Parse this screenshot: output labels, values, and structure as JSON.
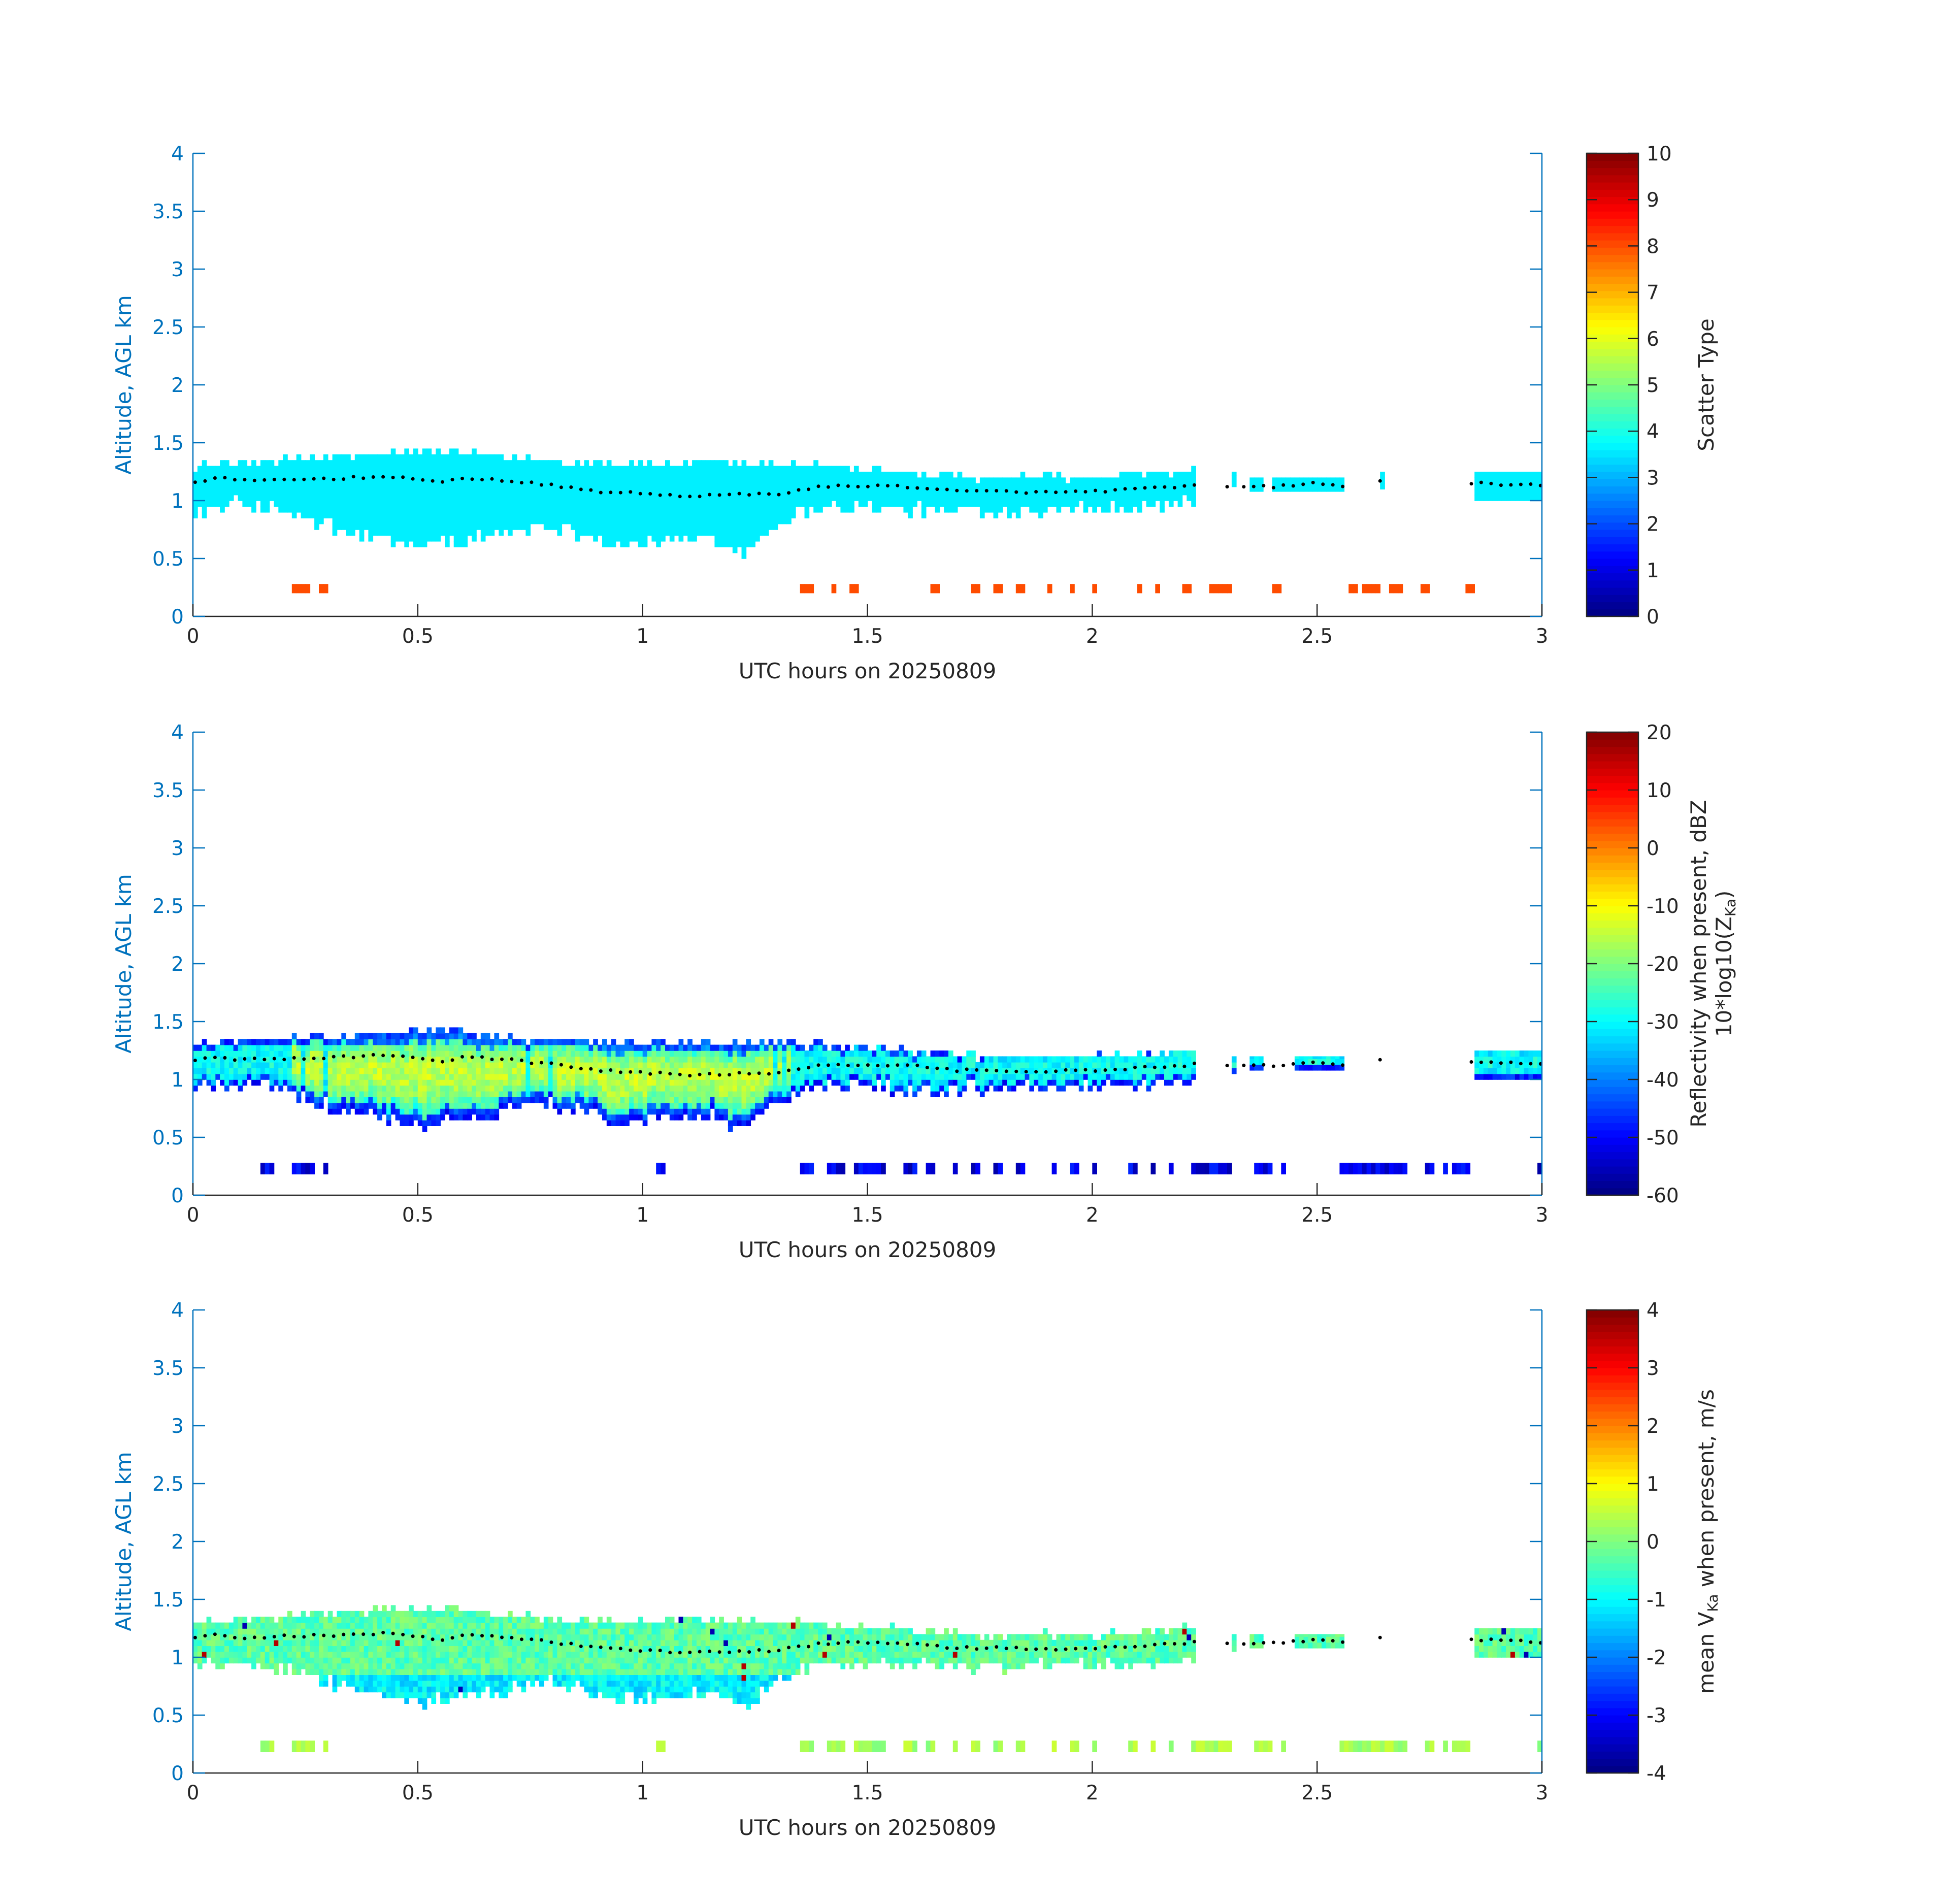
{
  "chart_data": [
    {
      "type": "heatmap",
      "xlabel": "UTC hours on 20250809",
      "ylabel": "Altitude, AGL km",
      "xlim": [
        0,
        3
      ],
      "ylim": [
        0,
        4
      ],
      "xticks": [
        "0",
        "0.5",
        "1",
        "1.5",
        "2",
        "2.5",
        "3"
      ],
      "yticks": [
        "0",
        "0.5",
        "1",
        "1.5",
        "2",
        "2.5",
        "3",
        "3.5",
        "4"
      ],
      "colorbar": {
        "label": "Scatter Type",
        "label2": "",
        "limits": [
          0,
          10
        ],
        "ticks": [
          "0",
          "1",
          "2",
          "3",
          "4",
          "5",
          "6",
          "7",
          "8",
          "9",
          "10"
        ]
      },
      "layer_x": [
        0.0,
        0.06,
        0.1,
        0.2,
        0.3,
        0.45,
        0.5,
        0.55,
        0.6,
        0.7,
        0.8,
        0.9,
        1.0,
        1.1,
        1.2,
        1.3,
        1.4,
        1.5,
        1.6,
        1.7,
        1.8,
        1.9,
        2.0,
        2.1,
        2.2,
        2.23,
        2.3,
        2.4,
        2.5,
        2.56,
        2.64,
        2.86,
        3.0
      ],
      "layer_y": [
        1.16,
        1.2,
        1.17,
        1.18,
        1.19,
        1.21,
        1.18,
        1.15,
        1.2,
        1.17,
        1.13,
        1.08,
        1.06,
        1.04,
        1.05,
        1.06,
        1.12,
        1.13,
        1.12,
        1.08,
        1.08,
        1.07,
        1.08,
        1.1,
        1.12,
        1.13,
        1.12,
        1.12,
        1.15,
        1.12,
        1.17,
        1.15,
        1.13
      ],
      "layer_gaps": [
        [
          2.24,
          2.33
        ],
        [
          2.57,
          2.84
        ]
      ],
      "echo_top": [
        [
          0.0,
          1.3
        ],
        [
          0.3,
          1.38
        ],
        [
          0.55,
          1.43
        ],
        [
          0.72,
          1.36
        ],
        [
          0.9,
          1.32
        ],
        [
          1.2,
          1.32
        ],
        [
          1.4,
          1.3
        ],
        [
          1.6,
          1.24
        ],
        [
          1.75,
          1.2
        ],
        [
          2.0,
          1.2
        ],
        [
          2.22,
          1.25
        ]
      ],
      "echo_base": [
        [
          0.0,
          0.9
        ],
        [
          0.1,
          0.98
        ],
        [
          0.2,
          0.9
        ],
        [
          0.35,
          0.72
        ],
        [
          0.5,
          0.62
        ],
        [
          0.62,
          0.66
        ],
        [
          0.72,
          0.75
        ],
        [
          0.8,
          0.8
        ],
        [
          0.95,
          0.62
        ],
        [
          1.05,
          0.65
        ],
        [
          1.15,
          0.7
        ],
        [
          1.22,
          0.55
        ],
        [
          1.3,
          0.82
        ],
        [
          1.4,
          0.95
        ],
        [
          1.6,
          0.92
        ],
        [
          1.8,
          0.92
        ],
        [
          2.0,
          0.94
        ],
        [
          2.22,
          0.98
        ]
      ],
      "echo_segments": [
        [
          2.31,
          2.32,
          1.12,
          1.25
        ],
        [
          2.35,
          2.38,
          1.08,
          1.2
        ],
        [
          2.4,
          2.45,
          1.08,
          1.2
        ],
        [
          2.45,
          2.56,
          1.08,
          1.2
        ],
        [
          2.64,
          2.65,
          1.1,
          1.25
        ],
        [
          2.85,
          3.0,
          1.0,
          1.25
        ]
      ],
      "surface_band": [
        0.2,
        0.28
      ],
      "surface_bins": [
        [
          0.22,
          0.26
        ],
        [
          0.28,
          0.3
        ],
        [
          1.35,
          1.38
        ],
        [
          1.42,
          1.43
        ],
        [
          1.46,
          1.48
        ],
        [
          1.64,
          1.66
        ],
        [
          1.73,
          1.75
        ],
        [
          1.78,
          1.8
        ],
        [
          1.83,
          1.85
        ],
        [
          1.9,
          1.91
        ],
        [
          1.95,
          1.96
        ],
        [
          2.0,
          2.01
        ],
        [
          2.1,
          2.11
        ],
        [
          2.14,
          2.15
        ],
        [
          2.2,
          2.22
        ],
        [
          2.26,
          2.31
        ],
        [
          2.4,
          2.42
        ],
        [
          2.57,
          2.59
        ],
        [
          2.6,
          2.64
        ],
        [
          2.66,
          2.69
        ],
        [
          2.73,
          2.75
        ],
        [
          2.83,
          2.85
        ]
      ],
      "fill_kind": "scatter_type",
      "main_value": 3.6,
      "surface_value": 8.0
    },
    {
      "type": "heatmap",
      "xlabel": "UTC hours on 20250809",
      "ylabel": "Altitude, AGL km",
      "xlim": [
        0,
        3
      ],
      "ylim": [
        0,
        4
      ],
      "xticks": [
        "0",
        "0.5",
        "1",
        "1.5",
        "2",
        "2.5",
        "3"
      ],
      "yticks": [
        "0",
        "0.5",
        "1",
        "1.5",
        "2",
        "2.5",
        "3",
        "3.5",
        "4"
      ],
      "colorbar": {
        "label": "Reflectivity when present, dBZ",
        "label2": "10*log10(Z",
        "label2_sub": "Ka",
        "label2_end": ")",
        "limits": [
          -60,
          20
        ],
        "ticks": [
          "-60",
          "-50",
          "-40",
          "-30",
          "-20",
          "-10",
          "0",
          "10",
          "20"
        ]
      },
      "layer_x": [
        0.0,
        0.06,
        0.1,
        0.2,
        0.3,
        0.45,
        0.5,
        0.55,
        0.6,
        0.7,
        0.8,
        0.9,
        1.0,
        1.1,
        1.2,
        1.3,
        1.4,
        1.5,
        1.6,
        1.7,
        1.8,
        1.9,
        2.0,
        2.1,
        2.2,
        2.23,
        2.3,
        2.4,
        2.5,
        2.56,
        2.64,
        2.86,
        3.0
      ],
      "layer_y": [
        1.16,
        1.2,
        1.17,
        1.18,
        1.19,
        1.21,
        1.18,
        1.15,
        1.2,
        1.17,
        1.13,
        1.08,
        1.06,
        1.04,
        1.05,
        1.06,
        1.12,
        1.13,
        1.12,
        1.08,
        1.08,
        1.07,
        1.08,
        1.1,
        1.12,
        1.13,
        1.12,
        1.12,
        1.15,
        1.12,
        1.17,
        1.15,
        1.13
      ],
      "layer_gaps": [
        [
          2.24,
          2.33
        ],
        [
          2.57,
          2.84
        ]
      ],
      "echo_top": [
        [
          0.0,
          1.3
        ],
        [
          0.3,
          1.38
        ],
        [
          0.55,
          1.43
        ],
        [
          0.72,
          1.36
        ],
        [
          0.9,
          1.32
        ],
        [
          1.2,
          1.32
        ],
        [
          1.4,
          1.3
        ],
        [
          1.6,
          1.24
        ],
        [
          1.75,
          1.2
        ],
        [
          2.0,
          1.2
        ],
        [
          2.22,
          1.25
        ]
      ],
      "echo_base": [
        [
          0.0,
          0.9
        ],
        [
          0.1,
          0.98
        ],
        [
          0.2,
          0.9
        ],
        [
          0.35,
          0.72
        ],
        [
          0.5,
          0.62
        ],
        [
          0.62,
          0.66
        ],
        [
          0.72,
          0.75
        ],
        [
          0.8,
          0.8
        ],
        [
          0.95,
          0.62
        ],
        [
          1.05,
          0.65
        ],
        [
          1.15,
          0.7
        ],
        [
          1.22,
          0.55
        ],
        [
          1.3,
          0.82
        ],
        [
          1.4,
          0.95
        ],
        [
          1.6,
          0.92
        ],
        [
          1.8,
          0.92
        ],
        [
          2.0,
          0.94
        ],
        [
          2.22,
          0.98
        ]
      ],
      "echo_segments": [
        [
          2.31,
          2.32,
          1.05,
          1.2
        ],
        [
          2.35,
          2.38,
          1.08,
          1.2
        ],
        [
          2.45,
          2.56,
          1.08,
          1.2
        ],
        [
          2.85,
          3.0,
          1.0,
          1.25
        ]
      ],
      "surface_band": [
        0.18,
        0.28
      ],
      "surface_bins": [
        [
          0.15,
          0.18
        ],
        [
          0.22,
          0.27
        ],
        [
          0.29,
          0.3
        ],
        [
          1.03,
          1.05
        ],
        [
          1.35,
          1.38
        ],
        [
          1.41,
          1.45
        ],
        [
          1.47,
          1.54
        ],
        [
          1.58,
          1.61
        ],
        [
          1.63,
          1.65
        ],
        [
          1.69,
          1.7
        ],
        [
          1.73,
          1.75
        ],
        [
          1.78,
          1.8
        ],
        [
          1.83,
          1.85
        ],
        [
          1.91,
          1.92
        ],
        [
          1.95,
          1.97
        ],
        [
          2.0,
          2.01
        ],
        [
          2.08,
          2.1
        ],
        [
          2.13,
          2.14
        ],
        [
          2.17,
          2.18
        ],
        [
          2.22,
          2.31
        ],
        [
          2.36,
          2.4
        ],
        [
          2.42,
          2.43
        ],
        [
          2.55,
          2.7
        ],
        [
          2.74,
          2.76
        ],
        [
          2.78,
          2.79
        ],
        [
          2.8,
          2.84
        ],
        [
          2.99,
          3.0
        ]
      ],
      "fill_kind": "reflectivity",
      "main_value": -33,
      "surface_value": -52
    },
    {
      "type": "heatmap",
      "xlabel": "UTC hours on 20250809",
      "ylabel": "Altitude, AGL km",
      "xlim": [
        0,
        3
      ],
      "ylim": [
        0,
        4
      ],
      "xticks": [
        "0",
        "0.5",
        "1",
        "1.5",
        "2",
        "2.5",
        "3"
      ],
      "yticks": [
        "0",
        "0.5",
        "1",
        "1.5",
        "2",
        "2.5",
        "3",
        "3.5",
        "4"
      ],
      "colorbar": {
        "label": "mean V",
        "label_sub": "Ka",
        "label_end": " when present, m/s",
        "label2": "",
        "limits": [
          -4,
          4
        ],
        "ticks": [
          "-4",
          "-3",
          "-2",
          "-1",
          "0",
          "1",
          "2",
          "3",
          "4"
        ]
      },
      "layer_x": [
        0.0,
        0.06,
        0.1,
        0.2,
        0.3,
        0.45,
        0.5,
        0.55,
        0.6,
        0.7,
        0.8,
        0.9,
        1.0,
        1.1,
        1.2,
        1.3,
        1.4,
        1.5,
        1.6,
        1.7,
        1.8,
        1.9,
        2.0,
        2.1,
        2.2,
        2.23,
        2.3,
        2.4,
        2.5,
        2.56,
        2.64,
        2.86,
        3.0
      ],
      "layer_y": [
        1.16,
        1.2,
        1.17,
        1.18,
        1.19,
        1.21,
        1.18,
        1.15,
        1.2,
        1.17,
        1.13,
        1.08,
        1.06,
        1.04,
        1.05,
        1.06,
        1.12,
        1.13,
        1.12,
        1.08,
        1.08,
        1.07,
        1.08,
        1.1,
        1.12,
        1.13,
        1.12,
        1.12,
        1.15,
        1.12,
        1.17,
        1.15,
        1.13
      ],
      "layer_gaps": [
        [
          2.24,
          2.33
        ],
        [
          2.57,
          2.84
        ]
      ],
      "echo_top": [
        [
          0.0,
          1.3
        ],
        [
          0.3,
          1.38
        ],
        [
          0.55,
          1.43
        ],
        [
          0.72,
          1.36
        ],
        [
          0.9,
          1.32
        ],
        [
          1.2,
          1.32
        ],
        [
          1.4,
          1.3
        ],
        [
          1.6,
          1.24
        ],
        [
          1.75,
          1.2
        ],
        [
          2.0,
          1.2
        ],
        [
          2.22,
          1.25
        ]
      ],
      "echo_base": [
        [
          0.0,
          0.9
        ],
        [
          0.1,
          0.98
        ],
        [
          0.2,
          0.9
        ],
        [
          0.35,
          0.72
        ],
        [
          0.5,
          0.62
        ],
        [
          0.62,
          0.66
        ],
        [
          0.72,
          0.75
        ],
        [
          0.8,
          0.8
        ],
        [
          0.95,
          0.62
        ],
        [
          1.05,
          0.65
        ],
        [
          1.15,
          0.7
        ],
        [
          1.22,
          0.55
        ],
        [
          1.3,
          0.82
        ],
        [
          1.4,
          0.95
        ],
        [
          1.6,
          0.92
        ],
        [
          1.8,
          0.92
        ],
        [
          2.0,
          0.94
        ],
        [
          2.22,
          0.98
        ]
      ],
      "echo_segments": [
        [
          2.31,
          2.32,
          1.05,
          1.2
        ],
        [
          2.35,
          2.38,
          1.08,
          1.2
        ],
        [
          2.45,
          2.56,
          1.08,
          1.2
        ],
        [
          2.85,
          3.0,
          1.0,
          1.25
        ]
      ],
      "surface_band": [
        0.18,
        0.28
      ],
      "surface_bins": [
        [
          0.15,
          0.18
        ],
        [
          0.22,
          0.27
        ],
        [
          0.29,
          0.3
        ],
        [
          1.03,
          1.05
        ],
        [
          1.35,
          1.38
        ],
        [
          1.41,
          1.45
        ],
        [
          1.47,
          1.54
        ],
        [
          1.58,
          1.61
        ],
        [
          1.63,
          1.65
        ],
        [
          1.69,
          1.7
        ],
        [
          1.73,
          1.75
        ],
        [
          1.78,
          1.8
        ],
        [
          1.83,
          1.85
        ],
        [
          1.91,
          1.92
        ],
        [
          1.95,
          1.97
        ],
        [
          2.0,
          2.01
        ],
        [
          2.08,
          2.1
        ],
        [
          2.13,
          2.14
        ],
        [
          2.17,
          2.18
        ],
        [
          2.22,
          2.31
        ],
        [
          2.36,
          2.4
        ],
        [
          2.42,
          2.43
        ],
        [
          2.55,
          2.7
        ],
        [
          2.74,
          2.76
        ],
        [
          2.78,
          2.79
        ],
        [
          2.8,
          2.84
        ],
        [
          2.99,
          3.0
        ]
      ],
      "fill_kind": "velocity",
      "main_value": -0.3,
      "surface_value": 0.3
    }
  ]
}
